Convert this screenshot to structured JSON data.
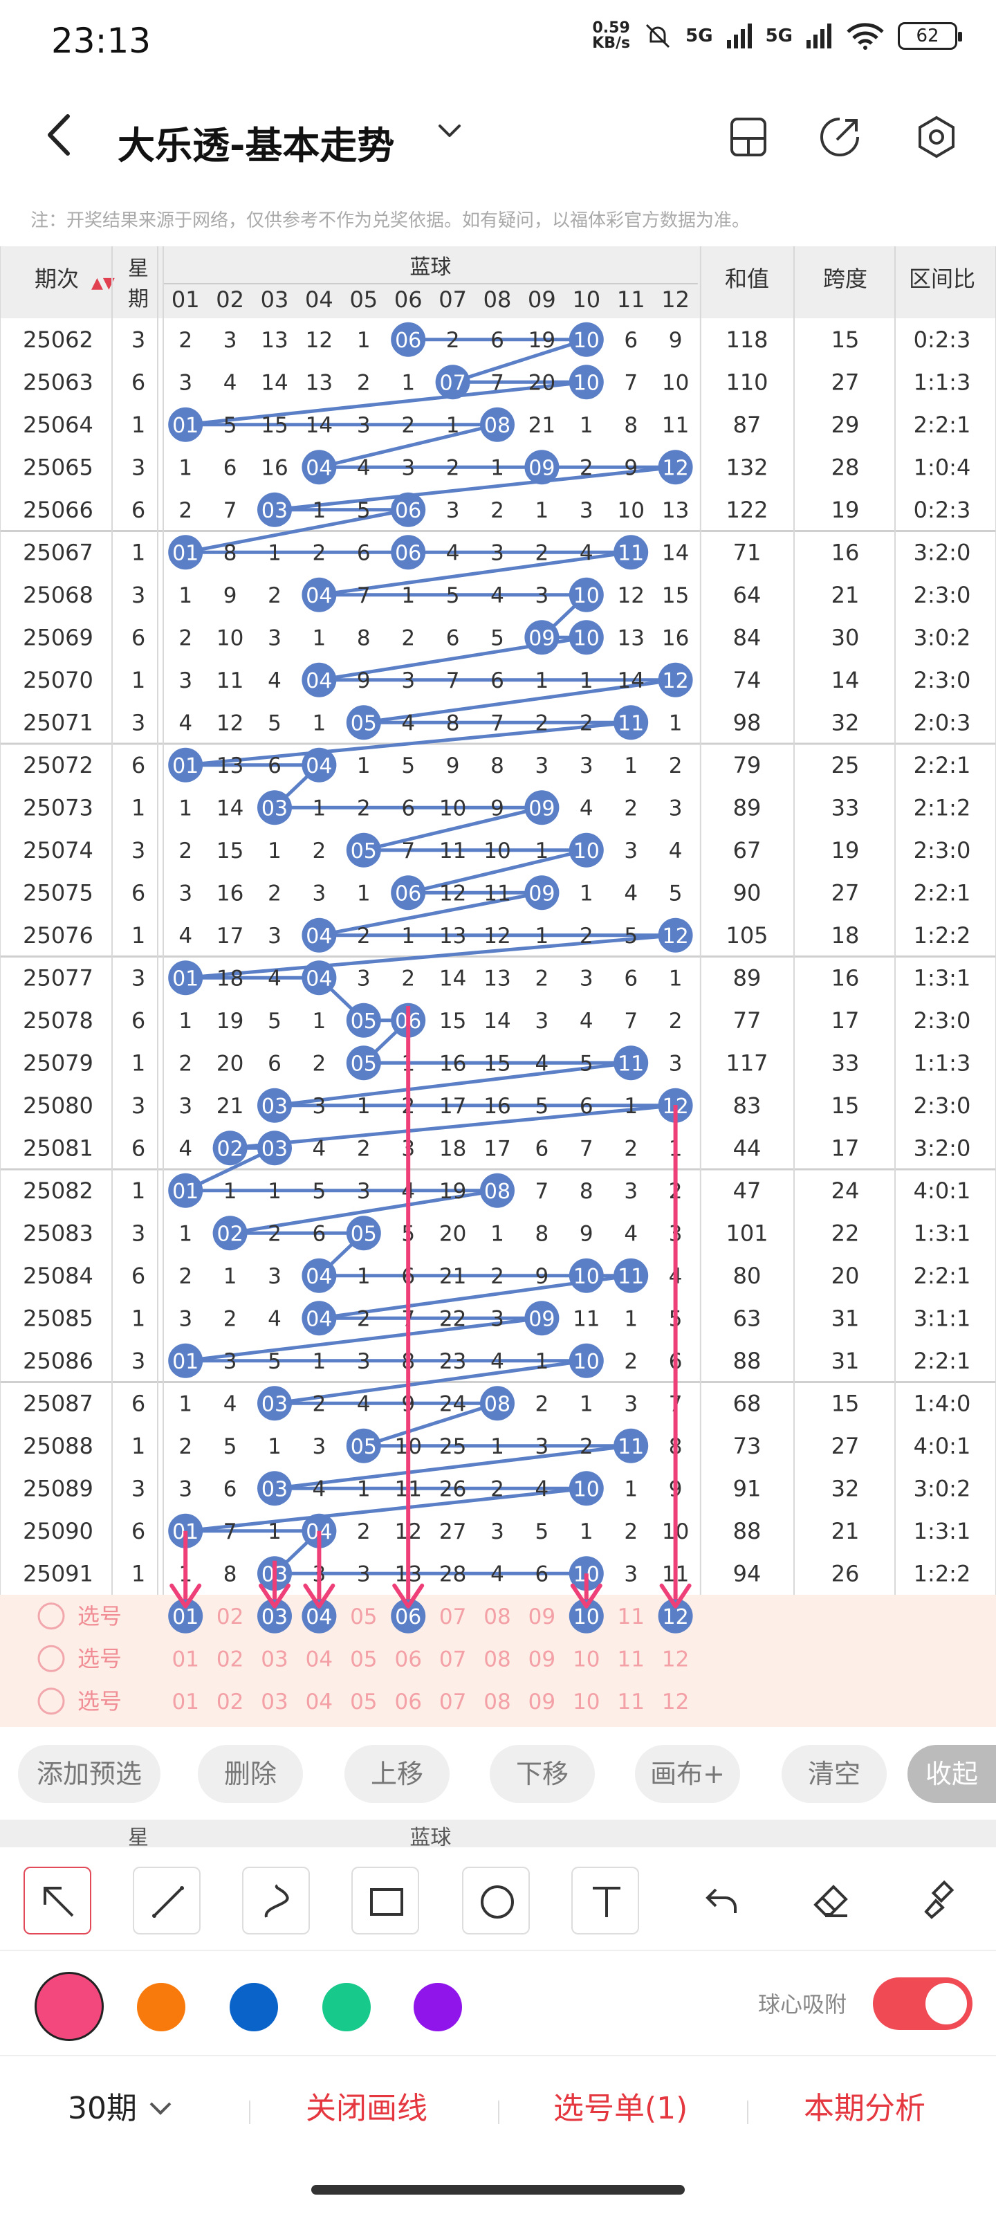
{
  "status": {
    "time": "23:13",
    "netspeed_value": "0.59",
    "netspeed_unit": "KB/s",
    "signal1": "5G",
    "signal2": "5G",
    "battery": "62"
  },
  "header": {
    "title": "大乐透-基本走势",
    "back_icon": "back-arrow-icon",
    "icons": [
      "switch-view-icon",
      "share-icon",
      "settings-icon"
    ]
  },
  "notice": "注：开奖结果来源于网络，仅供参考不作为兑奖依据。如有疑问，以福体彩官方数据为准。",
  "table": {
    "headers": {
      "period": "期次",
      "weekday_top": "星",
      "weekday_bottom": "期",
      "blue": "蓝球",
      "sum": "和值",
      "span": "跨度",
      "ratio": "区间比"
    },
    "ball_cols": [
      "01",
      "02",
      "03",
      "04",
      "05",
      "06",
      "07",
      "08",
      "09",
      "10",
      "11",
      "12"
    ],
    "rows": [
      {
        "period": "25062",
        "weekday": "3",
        "balls": [
          "2",
          "3",
          "13",
          "12",
          "1",
          "06",
          "2",
          "6",
          "19",
          "10",
          "6",
          "9"
        ],
        "sum": "118",
        "span": "15",
        "ratio": "0:2:3"
      },
      {
        "period": "25063",
        "weekday": "6",
        "balls": [
          "3",
          "4",
          "14",
          "13",
          "2",
          "1",
          "07",
          "7",
          "20",
          "10",
          "7",
          "10"
        ],
        "sum": "110",
        "span": "27",
        "ratio": "1:1:3"
      },
      {
        "period": "25064",
        "weekday": "1",
        "balls": [
          "01",
          "5",
          "15",
          "14",
          "3",
          "2",
          "1",
          "08",
          "21",
          "1",
          "8",
          "11"
        ],
        "sum": "87",
        "span": "29",
        "ratio": "2:2:1"
      },
      {
        "period": "25065",
        "weekday": "3",
        "balls": [
          "1",
          "6",
          "16",
          "04",
          "4",
          "3",
          "2",
          "1",
          "09",
          "2",
          "9",
          "12"
        ],
        "sum": "132",
        "span": "28",
        "ratio": "1:0:4"
      },
      {
        "period": "25066",
        "weekday": "6",
        "balls": [
          "2",
          "7",
          "03",
          "1",
          "5",
          "06",
          "3",
          "2",
          "1",
          "3",
          "10",
          "13"
        ],
        "sum": "122",
        "span": "19",
        "ratio": "0:2:3"
      },
      {
        "period": "25067",
        "weekday": "1",
        "balls": [
          "01",
          "8",
          "1",
          "2",
          "6",
          "06",
          "4",
          "3",
          "2",
          "4",
          "11",
          "14"
        ],
        "sum": "71",
        "span": "16",
        "ratio": "3:2:0"
      },
      {
        "period": "25068",
        "weekday": "3",
        "balls": [
          "1",
          "9",
          "2",
          "04",
          "7",
          "1",
          "5",
          "4",
          "3",
          "10",
          "12",
          "15"
        ],
        "sum": "64",
        "span": "21",
        "ratio": "2:3:0"
      },
      {
        "period": "25069",
        "weekday": "6",
        "balls": [
          "2",
          "10",
          "3",
          "1",
          "8",
          "2",
          "6",
          "5",
          "09",
          "10",
          "13",
          "16"
        ],
        "sum": "84",
        "span": "30",
        "ratio": "3:0:2"
      },
      {
        "period": "25070",
        "weekday": "1",
        "balls": [
          "3",
          "11",
          "4",
          "04",
          "9",
          "3",
          "7",
          "6",
          "1",
          "1",
          "14",
          "12"
        ],
        "sum": "74",
        "span": "14",
        "ratio": "2:3:0"
      },
      {
        "period": "25071",
        "weekday": "3",
        "balls": [
          "4",
          "12",
          "5",
          "1",
          "05",
          "4",
          "8",
          "7",
          "2",
          "2",
          "11",
          "1"
        ],
        "sum": "98",
        "span": "32",
        "ratio": "2:0:3"
      },
      {
        "period": "25072",
        "weekday": "6",
        "balls": [
          "01",
          "13",
          "6",
          "04",
          "1",
          "5",
          "9",
          "8",
          "3",
          "3",
          "1",
          "2"
        ],
        "sum": "79",
        "span": "25",
        "ratio": "2:2:1"
      },
      {
        "period": "25073",
        "weekday": "1",
        "balls": [
          "1",
          "14",
          "03",
          "1",
          "2",
          "6",
          "10",
          "9",
          "09",
          "4",
          "2",
          "3"
        ],
        "sum": "89",
        "span": "33",
        "ratio": "2:1:2"
      },
      {
        "period": "25074",
        "weekday": "3",
        "balls": [
          "2",
          "15",
          "1",
          "2",
          "05",
          "7",
          "11",
          "10",
          "1",
          "10",
          "3",
          "4"
        ],
        "sum": "67",
        "span": "19",
        "ratio": "2:3:0"
      },
      {
        "period": "25075",
        "weekday": "6",
        "balls": [
          "3",
          "16",
          "2",
          "3",
          "1",
          "06",
          "12",
          "11",
          "09",
          "1",
          "4",
          "5"
        ],
        "sum": "90",
        "span": "27",
        "ratio": "2:2:1"
      },
      {
        "period": "25076",
        "weekday": "1",
        "balls": [
          "4",
          "17",
          "3",
          "04",
          "2",
          "1",
          "13",
          "12",
          "1",
          "2",
          "5",
          "12"
        ],
        "sum": "105",
        "span": "18",
        "ratio": "1:2:2"
      },
      {
        "period": "25077",
        "weekday": "3",
        "balls": [
          "01",
          "18",
          "4",
          "04",
          "3",
          "2",
          "14",
          "13",
          "2",
          "3",
          "6",
          "1"
        ],
        "sum": "89",
        "span": "16",
        "ratio": "1:3:1"
      },
      {
        "period": "25078",
        "weekday": "6",
        "balls": [
          "1",
          "19",
          "5",
          "1",
          "05",
          "06",
          "15",
          "14",
          "3",
          "4",
          "7",
          "2"
        ],
        "sum": "77",
        "span": "17",
        "ratio": "2:3:0"
      },
      {
        "period": "25079",
        "weekday": "1",
        "balls": [
          "2",
          "20",
          "6",
          "2",
          "05",
          "1",
          "16",
          "15",
          "4",
          "5",
          "11",
          "3"
        ],
        "sum": "117",
        "span": "33",
        "ratio": "1:1:3"
      },
      {
        "period": "25080",
        "weekday": "3",
        "balls": [
          "3",
          "21",
          "03",
          "3",
          "1",
          "2",
          "17",
          "16",
          "5",
          "6",
          "1",
          "12"
        ],
        "sum": "83",
        "span": "15",
        "ratio": "2:3:0"
      },
      {
        "period": "25081",
        "weekday": "6",
        "balls": [
          "4",
          "02",
          "03",
          "4",
          "2",
          "3",
          "18",
          "17",
          "6",
          "7",
          "2",
          "1"
        ],
        "sum": "44",
        "span": "17",
        "ratio": "3:2:0"
      },
      {
        "period": "25082",
        "weekday": "1",
        "balls": [
          "01",
          "1",
          "1",
          "5",
          "3",
          "4",
          "19",
          "08",
          "7",
          "8",
          "3",
          "2"
        ],
        "sum": "47",
        "span": "24",
        "ratio": "4:0:1"
      },
      {
        "period": "25083",
        "weekday": "3",
        "balls": [
          "1",
          "02",
          "2",
          "6",
          "05",
          "5",
          "20",
          "1",
          "8",
          "9",
          "4",
          "3"
        ],
        "sum": "101",
        "span": "22",
        "ratio": "1:3:1"
      },
      {
        "period": "25084",
        "weekday": "6",
        "balls": [
          "2",
          "1",
          "3",
          "04",
          "1",
          "6",
          "21",
          "2",
          "9",
          "10",
          "11",
          "4"
        ],
        "sum": "80",
        "span": "20",
        "ratio": "2:2:1"
      },
      {
        "period": "25085",
        "weekday": "1",
        "balls": [
          "3",
          "2",
          "4",
          "04",
          "2",
          "7",
          "22",
          "3",
          "09",
          "11",
          "1",
          "5"
        ],
        "sum": "63",
        "span": "31",
        "ratio": "3:1:1"
      },
      {
        "period": "25086",
        "weekday": "3",
        "balls": [
          "01",
          "3",
          "5",
          "1",
          "3",
          "8",
          "23",
          "4",
          "1",
          "10",
          "2",
          "6"
        ],
        "sum": "88",
        "span": "31",
        "ratio": "2:2:1"
      },
      {
        "period": "25087",
        "weekday": "6",
        "balls": [
          "1",
          "4",
          "03",
          "2",
          "4",
          "9",
          "24",
          "08",
          "2",
          "1",
          "3",
          "7"
        ],
        "sum": "68",
        "span": "15",
        "ratio": "1:4:0"
      },
      {
        "period": "25088",
        "weekday": "1",
        "balls": [
          "2",
          "5",
          "1",
          "3",
          "05",
          "10",
          "25",
          "1",
          "3",
          "2",
          "11",
          "8"
        ],
        "sum": "73",
        "span": "27",
        "ratio": "4:0:1"
      },
      {
        "period": "25089",
        "weekday": "3",
        "balls": [
          "3",
          "6",
          "03",
          "4",
          "1",
          "11",
          "26",
          "2",
          "4",
          "10",
          "1",
          "9"
        ],
        "sum": "91",
        "span": "32",
        "ratio": "3:0:2"
      },
      {
        "period": "25090",
        "weekday": "6",
        "balls": [
          "01",
          "7",
          "1",
          "04",
          "2",
          "12",
          "27",
          "3",
          "5",
          "1",
          "2",
          "10"
        ],
        "sum": "88",
        "span": "21",
        "ratio": "1:3:1"
      },
      {
        "period": "25091",
        "weekday": "1",
        "balls": [
          "1",
          "8",
          "03",
          "3",
          "3",
          "13",
          "28",
          "4",
          "6",
          "10",
          "3",
          "11"
        ],
        "sum": "94",
        "span": "26",
        "ratio": "1:2:2"
      }
    ],
    "select_rows": [
      {
        "label": "选号",
        "picked": [
          "01",
          "03",
          "04",
          "06",
          "10",
          "12"
        ]
      },
      {
        "label": "选号",
        "picked": []
      },
      {
        "label": "选号",
        "picked": []
      }
    ]
  },
  "buttons": {
    "add": "添加预选",
    "delete": "删除",
    "up": "上移",
    "down": "下移",
    "canvas": "画布+",
    "clear": "清空",
    "collapse": "收起"
  },
  "tools": [
    "select-arrow-icon",
    "line-icon",
    "curve-icon",
    "rectangle-icon",
    "circle-icon",
    "text-icon",
    "undo-icon",
    "eraser-icon",
    "clear-brush-icon"
  ],
  "colors": {
    "pink": "#f2487e",
    "orange": "#f97a0c",
    "blue": "#0a63c9",
    "green": "#18c98c",
    "purple": "#8f15ea",
    "ball": "#5a7fc7",
    "arrow": "#ee3f78",
    "toggle": "#f04b55"
  },
  "snap_label": "球心吸附",
  "bottom": {
    "period": "30期",
    "close_draw": "关闭画线",
    "pick_list": "选号单(1)",
    "analysis": "本期分析"
  }
}
